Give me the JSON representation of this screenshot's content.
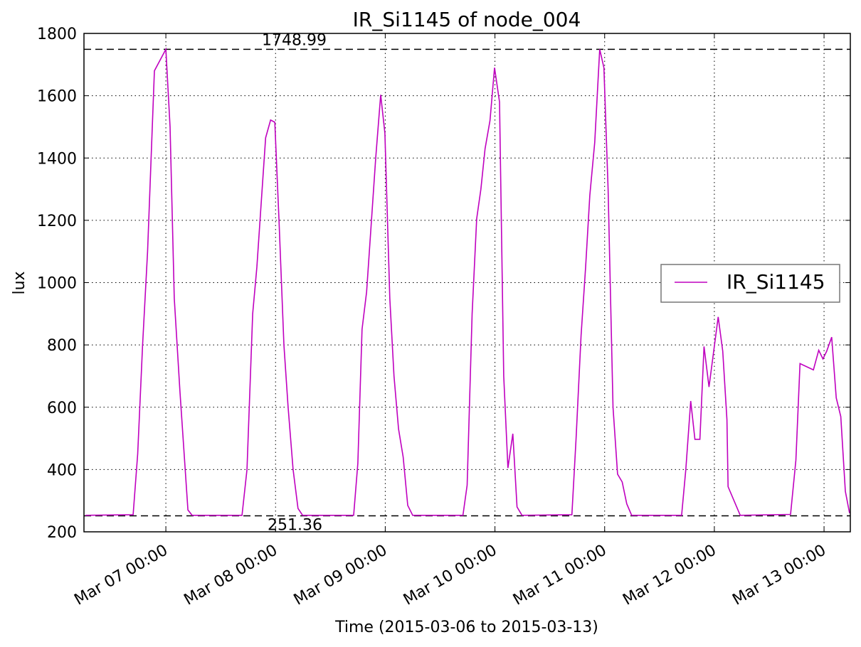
{
  "chart_data": {
    "type": "line",
    "title": "IR_Si1145 of node_004",
    "x_label": "Time (2015-03-06 to 2015-03-13)",
    "y_label": "lux",
    "x": [
      "2015-03-06T06:24",
      "2015-03-06T16:50",
      "2015-03-06T17:50",
      "2015-03-06T18:55",
      "2015-03-06T20:00",
      "2015-03-06T21:30",
      "2015-03-07T00:00",
      "2015-03-07T00:55",
      "2015-03-07T01:50",
      "2015-03-07T03:05",
      "2015-03-07T04:50",
      "2015-03-07T05:45",
      "2015-03-07T16:40",
      "2015-03-07T17:45",
      "2015-03-07T19:00",
      "2015-03-07T19:55",
      "2015-03-07T20:50",
      "2015-03-07T21:50",
      "2015-03-07T22:55",
      "2015-03-07T23:50",
      "2015-03-08T00:45",
      "2015-03-08T01:50",
      "2015-03-08T02:45",
      "2015-03-08T03:50",
      "2015-03-08T04:55",
      "2015-03-08T05:55",
      "2015-03-08T17:05",
      "2015-03-08T18:00",
      "2015-03-08T18:55",
      "2015-03-08T19:55",
      "2015-03-08T21:55",
      "2015-03-08T23:00",
      "2015-03-08T23:55",
      "2015-03-09T01:00",
      "2015-03-09T01:55",
      "2015-03-09T02:55",
      "2015-03-09T03:55",
      "2015-03-09T04:55",
      "2015-03-09T06:00",
      "2015-03-09T17:00",
      "2015-03-09T17:55",
      "2015-03-09T19:00",
      "2015-03-09T20:00",
      "2015-03-09T20:55",
      "2015-03-09T21:50",
      "2015-03-09T22:55",
      "2015-03-09T23:55",
      "2015-03-10T01:00",
      "2015-03-10T01:55",
      "2015-03-10T02:50",
      "2015-03-10T03:55",
      "2015-03-10T04:50",
      "2015-03-10T05:55",
      "2015-03-10T16:50",
      "2015-03-10T17:45",
      "2015-03-10T18:50",
      "2015-03-10T19:50",
      "2015-03-10T20:45",
      "2015-03-10T21:50",
      "2015-03-10T22:55",
      "2015-03-10T23:50",
      "2015-03-11T00:45",
      "2015-03-11T01:50",
      "2015-03-11T02:50",
      "2015-03-11T03:50",
      "2015-03-11T04:50",
      "2015-03-11T05:55",
      "2015-03-11T16:50",
      "2015-03-11T17:45",
      "2015-03-11T18:50",
      "2015-03-11T19:45",
      "2015-03-11T20:50",
      "2015-03-11T21:45",
      "2015-03-11T22:50",
      "2015-03-12T00:50",
      "2015-03-12T01:50",
      "2015-03-12T02:45",
      "2015-03-12T03:00",
      "2015-03-12T05:40",
      "2015-03-12T16:40",
      "2015-03-12T17:50",
      "2015-03-12T18:45",
      "2015-03-12T21:40",
      "2015-03-12T22:50",
      "2015-03-12T23:45",
      "2015-03-13T00:35",
      "2015-03-13T01:40",
      "2015-03-13T02:40",
      "2015-03-13T03:40",
      "2015-03-13T04:40",
      "2015-03-13T05:35"
    ],
    "series": [
      {
        "name": "IR_Si1145",
        "color": "#bf00bf",
        "values": [
          253,
          255,
          450,
          800,
          1100,
          1680,
          1749,
          1500,
          950,
          650,
          270,
          253,
          253,
          400,
          900,
          1050,
          1250,
          1465,
          1522,
          1515,
          1200,
          800,
          600,
          400,
          275,
          253,
          253,
          420,
          850,
          970,
          1400,
          1603,
          1480,
          950,
          700,
          530,
          440,
          285,
          253,
          253,
          350,
          900,
          1205,
          1300,
          1430,
          1520,
          1690,
          1580,
          700,
          405,
          515,
          280,
          253,
          255,
          500,
          830,
          1050,
          1280,
          1450,
          1749,
          1690,
          1300,
          600,
          385,
          360,
          290,
          253,
          253,
          400,
          620,
          497,
          497,
          795,
          665,
          890,
          780,
          560,
          345,
          253,
          256,
          430,
          740,
          720,
          783,
          755,
          780,
          825,
          630,
          570,
          330,
          260
        ]
      }
    ],
    "hlines": [
      1748.99,
      251.36
    ],
    "xlim": [
      "2015-03-06T06:05",
      "2015-03-13T05:45"
    ],
    "xticks": [
      {
        "value": "2015-03-07T00:00",
        "label": "Mar 07 00:00"
      },
      {
        "value": "2015-03-08T00:00",
        "label": "Mar 08 00:00"
      },
      {
        "value": "2015-03-09T00:00",
        "label": "Mar 09 00:00"
      },
      {
        "value": "2015-03-10T00:00",
        "label": "Mar 10 00:00"
      },
      {
        "value": "2015-03-11T00:00",
        "label": "Mar 11 00:00"
      },
      {
        "value": "2015-03-12T00:00",
        "label": "Mar 12 00:00"
      },
      {
        "value": "2015-03-13T00:00",
        "label": "Mar 13 00:00"
      }
    ],
    "ylim": [
      200,
      1800
    ],
    "yticks": [
      200,
      400,
      600,
      800,
      1000,
      1200,
      1400,
      1600,
      1800
    ],
    "grid": true,
    "legend": "right"
  }
}
